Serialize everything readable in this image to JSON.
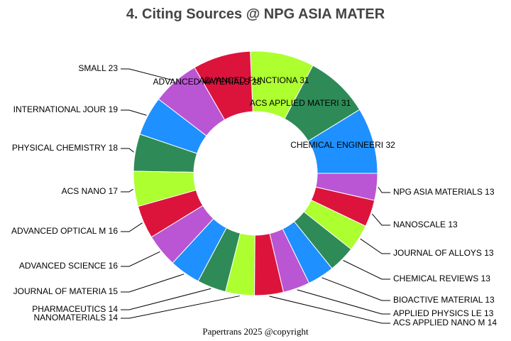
{
  "colors": {
    "palette": [
      "#1e90ff",
      "#2e8b57",
      "#adff2f",
      "#dc143c",
      "#ba55d3"
    ]
  },
  "chart_data": {
    "type": "pie",
    "variant": "donut",
    "title": "4. Citing Sources @ NPG ASIA MATER",
    "footer": "Papertrans 2025 @copyright",
    "legend": "none",
    "slices": [
      {
        "label": "CHEMICAL ENGINEERI",
        "value": 32,
        "text": "CHEMICAL ENGINEERI 32",
        "color": "#1e90ff"
      },
      {
        "label": "ACS APPLIED MATERI",
        "value": 31,
        "text": "ACS APPLIED MATERI 31",
        "color": "#2e8b57"
      },
      {
        "label": "ADVANCED FUNCTIONA",
        "value": 31,
        "text": "ADVANCED FUNCTIONA 31",
        "color": "#adff2f"
      },
      {
        "label": "ADVANCED MATERIALS",
        "value": 28,
        "text": "ADVANCED MATERIALS 28",
        "color": "#dc143c"
      },
      {
        "label": "SMALL",
        "value": 23,
        "text": "SMALL 23",
        "color": "#ba55d3"
      },
      {
        "label": "INTERNATIONAL JOUR",
        "value": 19,
        "text": "INTERNATIONAL JOUR 19",
        "color": "#1e90ff"
      },
      {
        "label": "PHYSICAL CHEMISTRY",
        "value": 18,
        "text": "PHYSICAL CHEMISTRY 18",
        "color": "#2e8b57"
      },
      {
        "label": "ACS NANO",
        "value": 17,
        "text": "ACS NANO 17",
        "color": "#adff2f"
      },
      {
        "label": "ADVANCED OPTICAL M",
        "value": 16,
        "text": "ADVANCED OPTICAL M 16",
        "color": "#dc143c"
      },
      {
        "label": "ADVANCED SCIENCE",
        "value": 16,
        "text": "ADVANCED SCIENCE 16",
        "color": "#ba55d3"
      },
      {
        "label": "JOURNAL OF MATERIA",
        "value": 15,
        "text": "JOURNAL OF MATERIA 15",
        "color": "#1e90ff"
      },
      {
        "label": "PHARMACEUTICS",
        "value": 14,
        "text": "PHARMACEUTICS 14",
        "color": "#2e8b57"
      },
      {
        "label": "NANOMATERIALS",
        "value": 14,
        "text": "NANOMATERIALS 14",
        "color": "#adff2f"
      },
      {
        "label": "ACS APPLIED NANO M",
        "value": 14,
        "text": "ACS APPLIED NANO M 14",
        "color": "#dc143c"
      },
      {
        "label": "APPLIED PHYSICS LE",
        "value": 13,
        "text": "APPLIED PHYSICS LE 13",
        "color": "#ba55d3"
      },
      {
        "label": "BIOACTIVE MATERIAL",
        "value": 13,
        "text": "BIOACTIVE MATERIAL 13",
        "color": "#1e90ff"
      },
      {
        "label": "CHEMICAL REVIEWS",
        "value": 13,
        "text": "CHEMICAL REVIEWS 13",
        "color": "#2e8b57"
      },
      {
        "label": "JOURNAL OF ALLOYS ",
        "value": 13,
        "text": "JOURNAL OF ALLOYS  13",
        "color": "#adff2f"
      },
      {
        "label": "NANOSCALE",
        "value": 13,
        "text": "NANOSCALE 13",
        "color": "#dc143c"
      },
      {
        "label": "NPG ASIA MATERIALS",
        "value": 13,
        "text": "NPG ASIA MATERIALS 13",
        "color": "#ba55d3"
      }
    ]
  }
}
